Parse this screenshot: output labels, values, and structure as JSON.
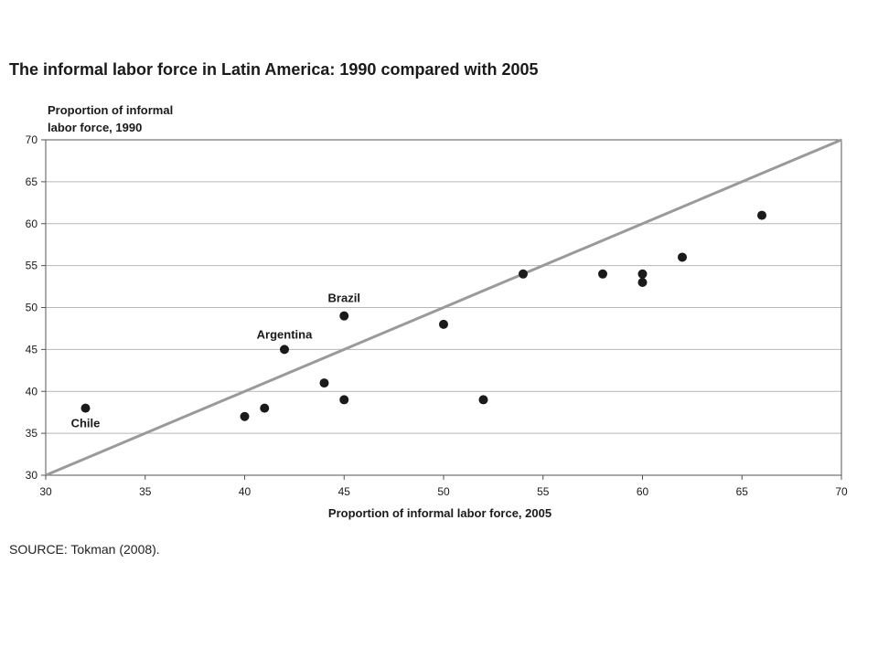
{
  "page": {
    "title": "The informal labor force in Latin America: 1990 compared with 2005",
    "source": "SOURCE: Tokman (2008)."
  },
  "chart_data": {
    "type": "scatter",
    "xlabel": "Proportion of informal labor force, 2005",
    "ylabel_lines": [
      "Proportion of informal",
      "labor force, 1990"
    ],
    "xlim": [
      30,
      70
    ],
    "ylim": [
      30,
      70
    ],
    "xticks": [
      "30",
      "35",
      "40",
      "45",
      "50",
      "55",
      "60",
      "65",
      "70"
    ],
    "yticks": [
      "30",
      "35",
      "40",
      "45",
      "50",
      "55",
      "60",
      "65",
      "70"
    ],
    "grid": "horizontal",
    "reference_line": {
      "from": [
        30,
        30
      ],
      "to": [
        70,
        70
      ],
      "color": "#9a9a9a"
    },
    "point_color": "#1a1a1a",
    "points": [
      {
        "x": 32,
        "y": 38,
        "label": "Chile"
      },
      {
        "x": 40,
        "y": 37
      },
      {
        "x": 41,
        "y": 38
      },
      {
        "x": 42,
        "y": 45,
        "label": "Argentina"
      },
      {
        "x": 44,
        "y": 41
      },
      {
        "x": 45,
        "y": 39
      },
      {
        "x": 45,
        "y": 49,
        "label": "Brazil"
      },
      {
        "x": 50,
        "y": 48
      },
      {
        "x": 52,
        "y": 39
      },
      {
        "x": 54,
        "y": 54
      },
      {
        "x": 58,
        "y": 54
      },
      {
        "x": 60,
        "y": 54
      },
      {
        "x": 60,
        "y": 53
      },
      {
        "x": 62,
        "y": 56
      },
      {
        "x": 66,
        "y": 61
      }
    ]
  }
}
